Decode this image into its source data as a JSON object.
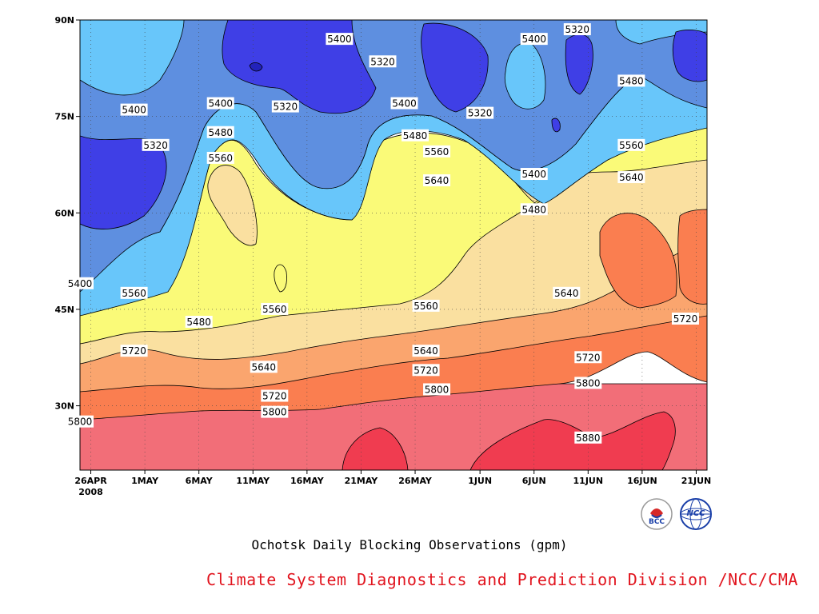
{
  "chart_data": {
    "type": "heatmap",
    "subtype": "filled-contour",
    "title": "Ochotsk Daily Blocking Observations (gpm)",
    "x_ticks": [
      "26APR",
      "1MAY",
      "6MAY",
      "11MAY",
      "16MAY",
      "21MAY",
      "26MAY",
      "1JUN",
      "6JUN",
      "11JUN",
      "16JUN",
      "21JUN"
    ],
    "x_year_label": "2008",
    "y_ticks": [
      "30N",
      "45N",
      "60N",
      "75N",
      "90N"
    ],
    "x_range": [
      "2008-04-25",
      "2008-06-22"
    ],
    "y_range_deg": [
      20,
      90
    ],
    "grid": true,
    "contour_levels": [
      5320,
      5400,
      5480,
      5560,
      5640,
      5720,
      5800,
      5880
    ],
    "level_colors": {
      "below_5320": "#3f3fe6",
      "5320_5400": "#5e8fe0",
      "5400_5480": "#68c6fa",
      "5480_5560": "#fafa78",
      "5560_5640": "#fae0a0",
      "5640_5720": "#faa56e",
      "5720_5800": "#fa7e50",
      "5800_5880": "#f26e78",
      "above_5880": "#f03c50"
    },
    "contour_labels": [
      {
        "text": "5400",
        "date": "2008-05-19",
        "lat": 87
      },
      {
        "text": "5320",
        "date": "2008-05-23",
        "lat": 83.5
      },
      {
        "text": "5400",
        "date": "2008-06-06",
        "lat": 87
      },
      {
        "text": "5320",
        "date": "2008-06-10",
        "lat": 88.5
      },
      {
        "text": "5480",
        "date": "2008-06-15",
        "lat": 80.5
      },
      {
        "text": "5400",
        "date": "2008-04-30",
        "lat": 76
      },
      {
        "text": "5400",
        "date": "2008-05-08",
        "lat": 77
      },
      {
        "text": "5320",
        "date": "2008-05-14",
        "lat": 76.5
      },
      {
        "text": "5400",
        "date": "2008-05-25",
        "lat": 77
      },
      {
        "text": "5320",
        "date": "2008-06-01",
        "lat": 75.5
      },
      {
        "text": "5320",
        "date": "2008-05-02",
        "lat": 70.5
      },
      {
        "text": "5480",
        "date": "2008-05-08",
        "lat": 72.5
      },
      {
        "text": "5480",
        "date": "2008-05-26",
        "lat": 72
      },
      {
        "text": "5560",
        "date": "2008-05-08",
        "lat": 68.5
      },
      {
        "text": "5560",
        "date": "2008-05-28",
        "lat": 69.5
      },
      {
        "text": "5560",
        "date": "2008-06-15",
        "lat": 70.5
      },
      {
        "text": "5400",
        "date": "2008-06-06",
        "lat": 66
      },
      {
        "text": "5640",
        "date": "2008-05-28",
        "lat": 65
      },
      {
        "text": "5640",
        "date": "2008-06-15",
        "lat": 65.5
      },
      {
        "text": "5480",
        "date": "2008-06-06",
        "lat": 60.5
      },
      {
        "text": "5400",
        "date": "2008-04-25",
        "lat": 49
      },
      {
        "text": "5560",
        "date": "2008-04-30",
        "lat": 47.5
      },
      {
        "text": "5560",
        "date": "2008-05-13",
        "lat": 45
      },
      {
        "text": "5560",
        "date": "2008-05-27",
        "lat": 45.5
      },
      {
        "text": "5480",
        "date": "2008-05-06",
        "lat": 43
      },
      {
        "text": "5640",
        "date": "2008-06-09",
        "lat": 47.5
      },
      {
        "text": "5720",
        "date": "2008-06-20",
        "lat": 43.5
      },
      {
        "text": "5720",
        "date": "2008-04-30",
        "lat": 38.5
      },
      {
        "text": "5640",
        "date": "2008-05-27",
        "lat": 38.5
      },
      {
        "text": "5720",
        "date": "2008-06-11",
        "lat": 37.5
      },
      {
        "text": "5640",
        "date": "2008-05-12",
        "lat": 36
      },
      {
        "text": "5720",
        "date": "2008-05-27",
        "lat": 35.5
      },
      {
        "text": "5720",
        "date": "2008-05-13",
        "lat": 31.5
      },
      {
        "text": "5800",
        "date": "2008-05-28",
        "lat": 32.5
      },
      {
        "text": "5800",
        "date": "2008-06-11",
        "lat": 33.5
      },
      {
        "text": "5800",
        "date": "2008-04-25",
        "lat": 27.5
      },
      {
        "text": "5800",
        "date": "2008-05-13",
        "lat": 29
      },
      {
        "text": "5880",
        "date": "2008-06-11",
        "lat": 25
      }
    ]
  },
  "logos": {
    "left": {
      "name": "BCC",
      "text": "BCC",
      "color": "#1a3fa8"
    },
    "right": {
      "name": "NCC",
      "text": "NCC",
      "color": "#1a3fa8"
    }
  },
  "caption": "Ochotsk Daily Blocking Observations (gpm)",
  "credit": "Climate System Diagnostics and Prediction Division /NCC/CMA"
}
